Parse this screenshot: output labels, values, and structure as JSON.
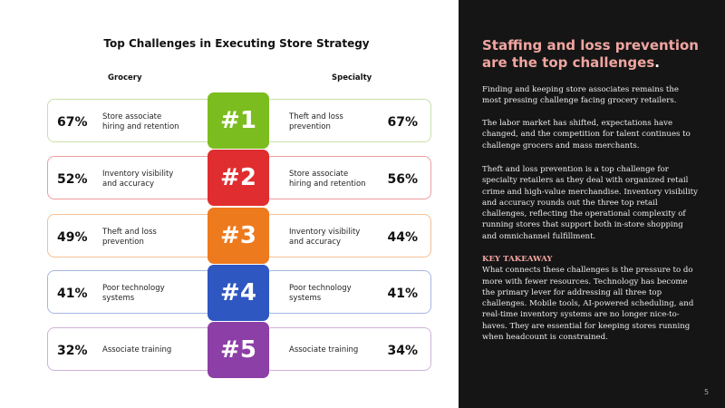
{
  "chart_data": {
    "type": "table",
    "title": "Top Challenges in Executing Store Strategy",
    "columns": [
      "Grocery",
      "Rank",
      "Specialty"
    ],
    "rows": [
      {
        "rank": "#1",
        "color": "#7bbd1e",
        "grocery": {
          "pct": "67%",
          "label": "Store associate\nhiring and retention",
          "value": 67,
          "border": "#c9dfa9"
        },
        "specialty": {
          "pct": "67%",
          "label": "Theft and loss\nprevention",
          "value": 67,
          "border": "#c9dfa9"
        }
      },
      {
        "rank": "#2",
        "color": "#e02d2f",
        "grocery": {
          "pct": "52%",
          "label": "Inventory visibility\nand accuracy",
          "value": 52,
          "border": "#ef9d9e"
        },
        "specialty": {
          "pct": "56%",
          "label": "Store associate\nhiring and retention",
          "value": 56,
          "border": "#ef9d9e"
        }
      },
      {
        "rank": "#3",
        "color": "#ee7a1e",
        "grocery": {
          "pct": "49%",
          "label": "Theft and loss\nprevention",
          "value": 49,
          "border": "#f4c094"
        },
        "specialty": {
          "pct": "44%",
          "label": "Inventory visibility\nand accuracy",
          "value": 44,
          "border": "#f4c094"
        }
      },
      {
        "rank": "#4",
        "color": "#2e57c2",
        "grocery": {
          "pct": "41%",
          "label": "Poor technology\nsystems",
          "value": 41,
          "border": "#a7b7e3"
        },
        "specialty": {
          "pct": "41%",
          "label": "Poor technology\nsystems",
          "value": 41,
          "border": "#a7b7e3"
        }
      },
      {
        "rank": "#5",
        "color": "#8c3fa6",
        "grocery": {
          "pct": "32%",
          "label": "Associate training",
          "value": 32,
          "border": "#cfb2d9"
        },
        "specialty": {
          "pct": "34%",
          "label": "Associate training",
          "value": 34,
          "border": "#cfb2d9"
        }
      }
    ]
  },
  "left": {
    "title": "Top Challenges in Executing Store Strategy",
    "col_grocery": "Grocery",
    "col_specialty": "Specialty"
  },
  "right": {
    "headline": "Staffing and loss prevention are the top challenges",
    "headline_end": ".",
    "p1": "Finding and keeping store associates remains the most pressing challenge facing grocery retailers.",
    "p2": "The labor market has shifted, expectations have changed, and the competition for talent continues to challenge grocers and mass merchants.",
    "p3": "Theft and loss prevention is a top challenge for specialty retailers as they deal with organized retail crime and high-value merchandise. Inventory visibility and accuracy rounds out the three top retail challenges, reflecting the operational complexity of running stores that support both in-store shopping and omnichannel fulfillment.",
    "kt_label": "KEY TAKEAWAY",
    "p4": "What connects these challenges is the pressure to do more with fewer resources. Technology has become the primary lever for addressing all three top challenges. Mobile tools, AI-powered scheduling, and real-time inventory systems are no longer nice-to-haves. They are essential for keeping stores running when headcount is constrained.",
    "page_number": "5"
  },
  "colors": {
    "panel_bg": "#151515",
    "accent_pink": "#f0a5a0"
  }
}
